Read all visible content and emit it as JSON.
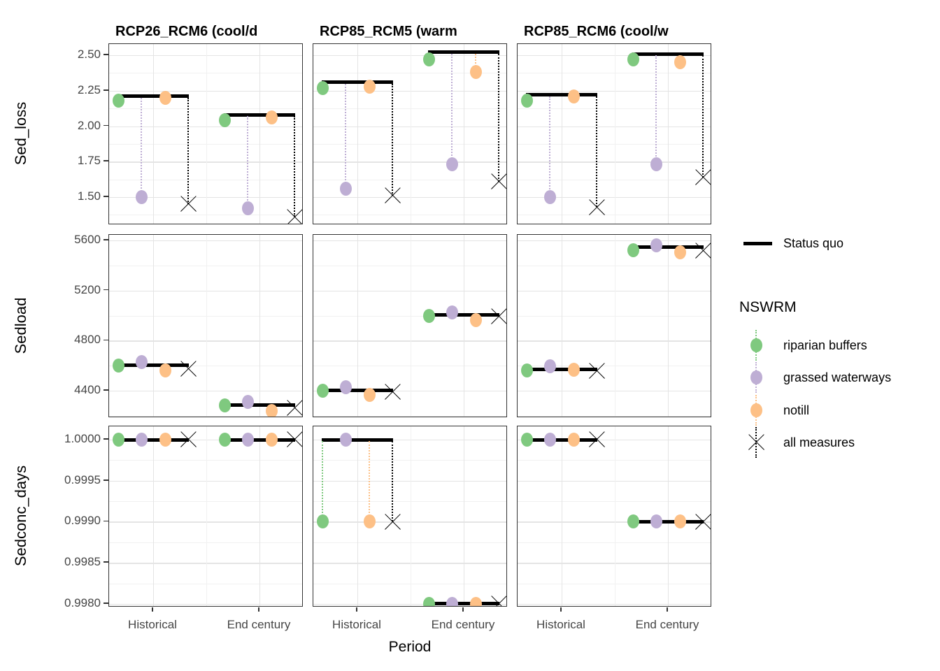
{
  "figure": {
    "x_axis_title": "Period"
  },
  "legend": {
    "status_quo": {
      "label": "Status quo",
      "line_color": "#000000"
    },
    "group_title": "NSWRM",
    "items": [
      {
        "label": "riparian buffers",
        "marker": "dot",
        "color": "#7FC97F"
      },
      {
        "label": "grassed waterways",
        "marker": "dot",
        "color": "#BEAED4"
      },
      {
        "label": "notill",
        "marker": "dot",
        "color": "#FDC086"
      },
      {
        "label": "all measures",
        "marker": "x",
        "color": "#000000"
      }
    ]
  },
  "chart_data": {
    "type": "scatter",
    "xlabel": "Period",
    "categories": [
      "Historical",
      "End century"
    ],
    "facet_columns": [
      "RCP26_RCM6 (cool/d",
      "RCP85_RCM5 (warm",
      "RCP85_RCM6 (cool/w"
    ],
    "facet_rows": [
      {
        "ylabel": "Sed_loss",
        "tick_labels": [
          "2.50",
          "2.25",
          "2.00",
          "1.75",
          "1.50"
        ],
        "ylim": [
          1.303,
          2.579
        ]
      },
      {
        "ylabel": "Sedload",
        "tick_labels": [
          "5600",
          "5200",
          "4800",
          "4400"
        ],
        "ylim": [
          4182,
          5645
        ]
      },
      {
        "ylabel": "Sedconc_days",
        "tick_labels": [
          "1.0000",
          "0.9995",
          "0.9990",
          "0.9985",
          "0.9980"
        ],
        "ylim": [
          0.997957,
          1.000162
        ]
      }
    ],
    "series": [
      {
        "name": "riparian buffers",
        "key": "riparian_buffers",
        "color": "#7FC97F",
        "marker": "dot"
      },
      {
        "name": "grassed waterways",
        "key": "grassed_waterways",
        "color": "#BEAED4",
        "marker": "dot"
      },
      {
        "name": "notill",
        "key": "notill",
        "color": "#FDC086",
        "marker": "dot"
      },
      {
        "name": "all measures",
        "key": "all_measures",
        "color": "#000000",
        "marker": "x"
      }
    ],
    "reference_series_name": "Status quo",
    "panels": [
      {
        "row": "Sed_loss",
        "col": "RCP26_RCM6 (cool/d",
        "groups": [
          {
            "category": "Historical",
            "status_quo": 2.21,
            "riparian_buffers": 2.18,
            "grassed_waterways": 1.5,
            "notill": 2.2,
            "all_measures": 1.45
          },
          {
            "category": "End century",
            "status_quo": 2.08,
            "riparian_buffers": 2.04,
            "grassed_waterways": 1.42,
            "notill": 2.06,
            "all_measures": 1.36
          }
        ]
      },
      {
        "row": "Sed_loss",
        "col": "RCP85_RCM5 (warm",
        "groups": [
          {
            "category": "Historical",
            "status_quo": 2.31,
            "riparian_buffers": 2.27,
            "grassed_waterways": 1.56,
            "notill": 2.28,
            "all_measures": 1.51
          },
          {
            "category": "End century",
            "status_quo": 2.52,
            "riparian_buffers": 2.47,
            "grassed_waterways": 1.73,
            "notill": 2.38,
            "all_measures": 1.61
          }
        ]
      },
      {
        "row": "Sed_loss",
        "col": "RCP85_RCM6 (cool/w",
        "groups": [
          {
            "category": "Historical",
            "status_quo": 2.22,
            "riparian_buffers": 2.18,
            "grassed_waterways": 1.5,
            "notill": 2.21,
            "all_measures": 1.43
          },
          {
            "category": "End century",
            "status_quo": 2.51,
            "riparian_buffers": 2.47,
            "grassed_waterways": 1.73,
            "notill": 2.45,
            "all_measures": 1.64
          }
        ]
      },
      {
        "row": "Sedload",
        "col": "RCP26_RCM6 (cool/d",
        "groups": [
          {
            "category": "Historical",
            "status_quo": 4605,
            "riparian_buffers": 4600,
            "grassed_waterways": 4630,
            "notill": 4560,
            "all_measures": 4575
          },
          {
            "category": "End century",
            "status_quo": 4285,
            "riparian_buffers": 4280,
            "grassed_waterways": 4310,
            "notill": 4240,
            "all_measures": 4260
          }
        ]
      },
      {
        "row": "Sedload",
        "col": "RCP85_RCM5 (warm",
        "groups": [
          {
            "category": "Historical",
            "status_quo": 4405,
            "riparian_buffers": 4400,
            "grassed_waterways": 4425,
            "notill": 4365,
            "all_measures": 4390
          },
          {
            "category": "End century",
            "status_quo": 5005,
            "riparian_buffers": 5000,
            "grassed_waterways": 5025,
            "notill": 4965,
            "all_measures": 4995
          }
        ]
      },
      {
        "row": "Sedload",
        "col": "RCP85_RCM6 (cool/w",
        "groups": [
          {
            "category": "Historical",
            "status_quo": 4570,
            "riparian_buffers": 4560,
            "grassed_waterways": 4595,
            "notill": 4570,
            "all_measures": 4560
          },
          {
            "category": "End century",
            "status_quo": 5545,
            "riparian_buffers": 5520,
            "grassed_waterways": 5560,
            "notill": 5505,
            "all_measures": 5520
          }
        ]
      },
      {
        "row": "Sedconc_days",
        "col": "RCP26_RCM6 (cool/d",
        "groups": [
          {
            "category": "Historical",
            "status_quo": 1.0,
            "riparian_buffers": 1.0,
            "grassed_waterways": 1.0,
            "notill": 1.0,
            "all_measures": 1.0
          },
          {
            "category": "End century",
            "status_quo": 1.0,
            "riparian_buffers": 1.0,
            "grassed_waterways": 1.0,
            "notill": 1.0,
            "all_measures": 1.0
          }
        ]
      },
      {
        "row": "Sedconc_days",
        "col": "RCP85_RCM5 (warm",
        "groups": [
          {
            "category": "Historical",
            "status_quo": 1.0,
            "riparian_buffers": 0.999,
            "grassed_waterways": 1.0,
            "notill": 0.999,
            "all_measures": 0.999
          },
          {
            "category": "End century",
            "status_quo": 0.998,
            "riparian_buffers": 0.998,
            "grassed_waterways": 0.998,
            "notill": 0.998,
            "all_measures": 0.998
          }
        ]
      },
      {
        "row": "Sedconc_days",
        "col": "RCP85_RCM6 (cool/w",
        "groups": [
          {
            "category": "Historical",
            "status_quo": 1.0,
            "riparian_buffers": 1.0,
            "grassed_waterways": 1.0,
            "notill": 1.0,
            "all_measures": 1.0
          },
          {
            "category": "End century",
            "status_quo": 0.999,
            "riparian_buffers": 0.999,
            "grassed_waterways": 0.999,
            "notill": 0.999,
            "all_measures": 0.999
          }
        ]
      }
    ]
  }
}
